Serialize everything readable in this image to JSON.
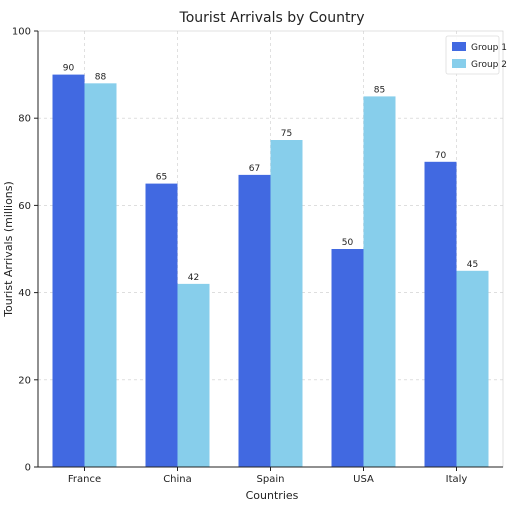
{
  "chart_data": {
    "type": "bar",
    "title": "Tourist Arrivals by Country",
    "xlabel": "Countries",
    "ylabel": "Tourist Arrivals (millions)",
    "categories": [
      "France",
      "China",
      "Spain",
      "USA",
      "Italy"
    ],
    "series": [
      {
        "name": "Group 1",
        "values": [
          90,
          65,
          67,
          50,
          70
        ],
        "color": "#4169e1"
      },
      {
        "name": "Group 2",
        "values": [
          88,
          42,
          75,
          85,
          45
        ],
        "color": "#87ceeb"
      }
    ],
    "ylim": [
      0,
      100
    ],
    "yticks": [
      0,
      20,
      40,
      60,
      80,
      100
    ],
    "grid": true,
    "legend_position": "top-right",
    "data_labels": true
  }
}
